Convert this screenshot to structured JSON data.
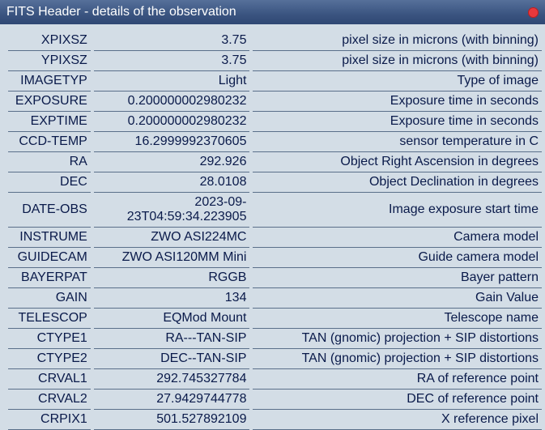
{
  "window": {
    "title": "FITS Header - details of the observation"
  },
  "rows": [
    {
      "key": "XPIXSZ",
      "value": "3.75",
      "desc": "pixel size in microns (with binning)"
    },
    {
      "key": "YPIXSZ",
      "value": "3.75",
      "desc": "pixel size in microns (with binning)"
    },
    {
      "key": "IMAGETYP",
      "value": "Light",
      "desc": "Type of image"
    },
    {
      "key": "EXPOSURE",
      "value": "0.200000002980232",
      "desc": "Exposure time in seconds"
    },
    {
      "key": "EXPTIME",
      "value": "0.200000002980232",
      "desc": "Exposure time in seconds"
    },
    {
      "key": "CCD-TEMP",
      "value": "16.2999992370605",
      "desc": "sensor temperature in C"
    },
    {
      "key": "RA",
      "value": "292.926",
      "desc": "Object Right Ascension in degrees"
    },
    {
      "key": "DEC",
      "value": "28.0108",
      "desc": "Object Declination in degrees"
    },
    {
      "key": "DATE-OBS",
      "value": "2023-09-23T04:59:34.223905",
      "desc": "Image exposure start time"
    },
    {
      "key": "INSTRUME",
      "value": "ZWO ASI224MC",
      "desc": "Camera model"
    },
    {
      "key": "GUIDECAM",
      "value": "ZWO ASI120MM Mini",
      "desc": "Guide camera model"
    },
    {
      "key": "BAYERPAT",
      "value": "RGGB",
      "desc": "Bayer pattern"
    },
    {
      "key": "GAIN",
      "value": "134",
      "desc": "Gain Value"
    },
    {
      "key": "TELESCOP",
      "value": "EQMod Mount",
      "desc": "Telescope name"
    },
    {
      "key": "CTYPE1",
      "value": "RA---TAN-SIP",
      "desc": "TAN (gnomic) projection + SIP distortions"
    },
    {
      "key": "CTYPE2",
      "value": "DEC--TAN-SIP",
      "desc": "TAN (gnomic) projection + SIP distortions"
    },
    {
      "key": "CRVAL1",
      "value": "292.745327784",
      "desc": "RA of reference point"
    },
    {
      "key": "CRVAL2",
      "value": "27.9429744778",
      "desc": "DEC of reference point"
    },
    {
      "key": "CRPIX1",
      "value": "501.527892109",
      "desc": "X reference pixel"
    }
  ]
}
